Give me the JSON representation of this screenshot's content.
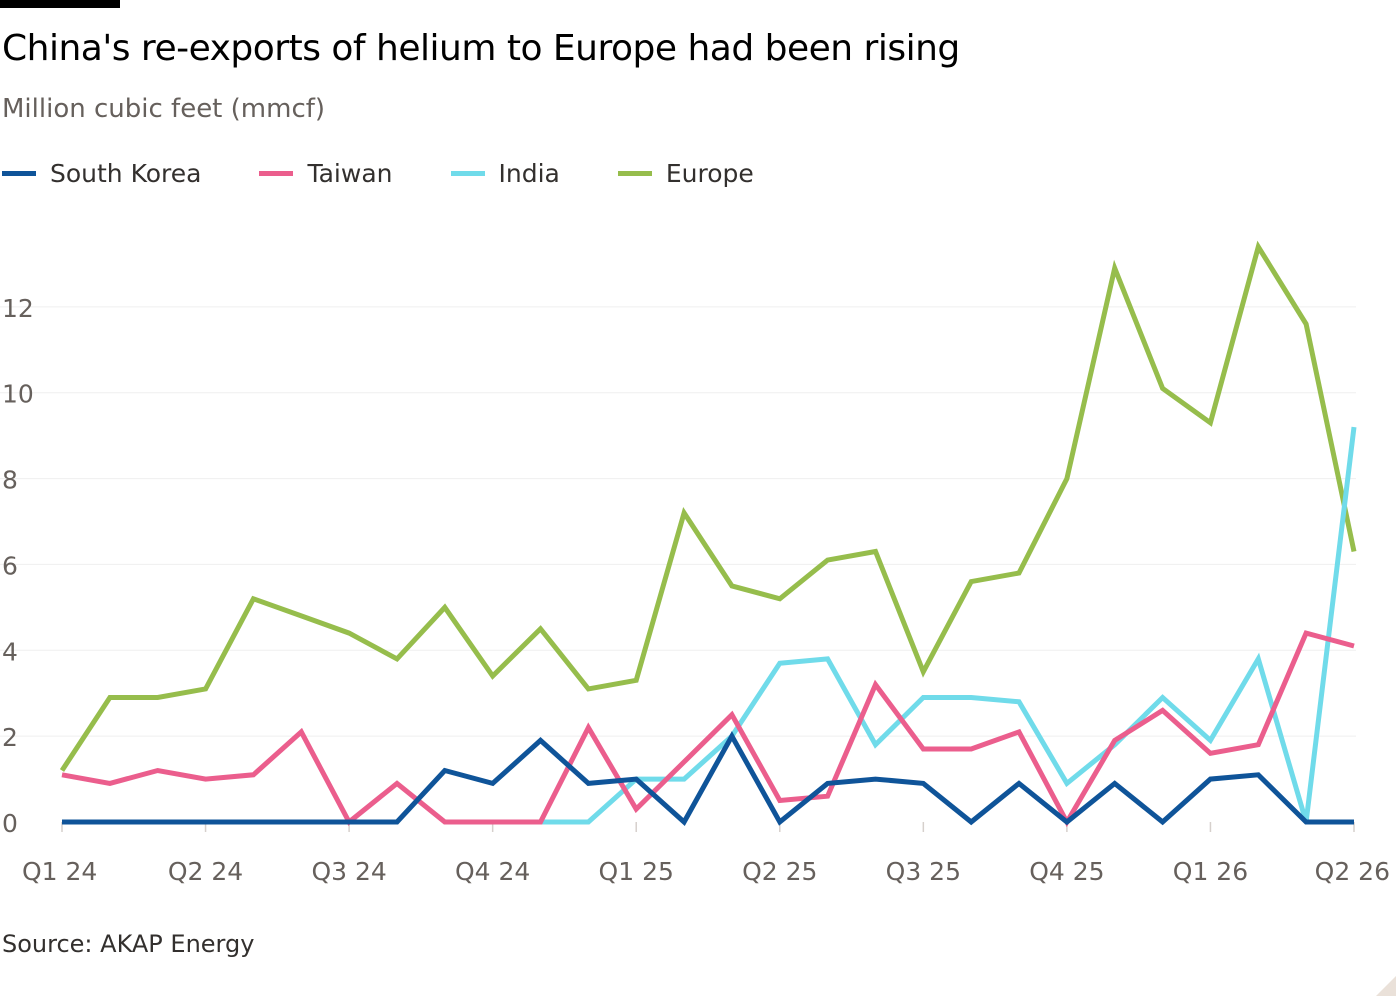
{
  "chart_data": {
    "type": "line",
    "title": "China's re-exports of helium to Europe had been rising",
    "subtitle": "Million cubic feet (mmcf)",
    "source": "Source: AKAP Energy",
    "ylim": [
      0,
      14
    ],
    "yticks": [
      0,
      2,
      4,
      6,
      8,
      10,
      12
    ],
    "x": [
      "Jan 24",
      "Feb 24",
      "Mar 24",
      "Apr 24",
      "May 24",
      "Jun 24",
      "Jul 24",
      "Aug 24",
      "Sep 24",
      "Oct 24",
      "Nov 24",
      "Dec 24",
      "Jan 25",
      "Feb 25",
      "Mar 25",
      "Apr 25",
      "May 25",
      "Jun 25",
      "Jul 25",
      "Aug 25",
      "Sep 25",
      "Oct 25",
      "Nov 25",
      "Dec 25",
      "Jan 26",
      "Feb 26",
      "Mar 26",
      "Apr 26"
    ],
    "xticks": [
      {
        "index": 0,
        "label": "Q1 24"
      },
      {
        "index": 3,
        "label": "Q2 24"
      },
      {
        "index": 6,
        "label": "Q3 24"
      },
      {
        "index": 9,
        "label": "Q4 24"
      },
      {
        "index": 12,
        "label": "Q1 25"
      },
      {
        "index": 15,
        "label": "Q2 25"
      },
      {
        "index": 18,
        "label": "Q3 25"
      },
      {
        "index": 21,
        "label": "Q4 25"
      },
      {
        "index": 24,
        "label": "Q1 26"
      },
      {
        "index": 27,
        "label": "Q2 26"
      }
    ],
    "grid": true,
    "legend_position": "top-left",
    "series": [
      {
        "name": "South Korea",
        "color": "#0f5499",
        "values": [
          0,
          0,
          0,
          0,
          0,
          0,
          0,
          0,
          1.2,
          0.9,
          1.9,
          0.9,
          1.0,
          0,
          2.0,
          0,
          0.9,
          1.0,
          0.9,
          0,
          0.9,
          0,
          0.9,
          0,
          1.0,
          1.1,
          0,
          0
        ]
      },
      {
        "name": "Taiwan",
        "color": "#eb5e8d",
        "values": [
          1.1,
          0.9,
          1.2,
          1.0,
          1.1,
          2.1,
          0,
          0.9,
          0,
          0,
          0,
          2.2,
          0.3,
          1.4,
          2.5,
          0.5,
          0.6,
          3.2,
          1.7,
          1.7,
          2.1,
          0,
          1.9,
          2.6,
          1.6,
          1.8,
          4.4,
          4.1
        ]
      },
      {
        "name": "India",
        "color": "#70dbea",
        "values": [
          null,
          null,
          null,
          null,
          null,
          null,
          null,
          null,
          0,
          0,
          0,
          0,
          1.0,
          1.0,
          2.0,
          3.7,
          3.8,
          1.8,
          2.9,
          2.9,
          2.8,
          0.9,
          1.8,
          2.9,
          1.9,
          3.8,
          0,
          9.2
        ]
      },
      {
        "name": "Europe",
        "color": "#96bd4c",
        "values": [
          1.2,
          2.9,
          2.9,
          3.1,
          5.2,
          4.8,
          4.4,
          3.8,
          5.0,
          3.4,
          4.5,
          3.1,
          3.3,
          7.2,
          5.5,
          5.2,
          6.1,
          6.3,
          3.5,
          5.6,
          5.8,
          8.0,
          12.9,
          10.1,
          9.3,
          13.4,
          11.6,
          6.3
        ]
      }
    ]
  }
}
